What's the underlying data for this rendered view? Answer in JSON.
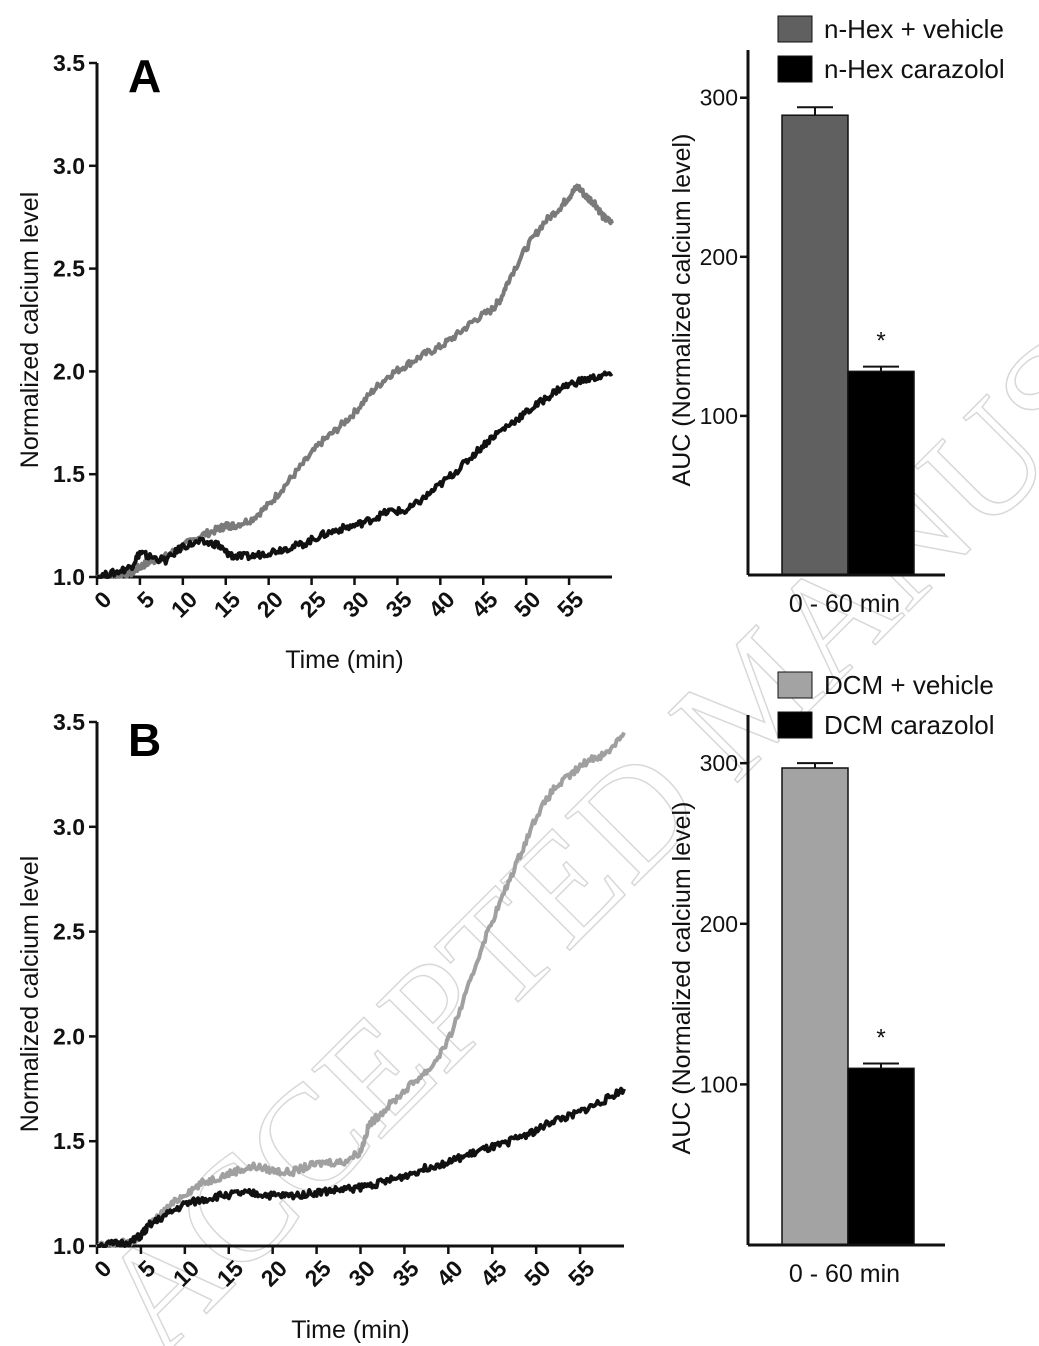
{
  "chart_data": [
    {
      "type": "line",
      "panel": "A",
      "xlabel": "Time (min)",
      "ylabel": "Normalized calcium level",
      "xlim": [
        0,
        60
      ],
      "ylim": [
        1.0,
        3.5
      ],
      "xticks": [
        "0",
        "5",
        "10",
        "15",
        "20",
        "25",
        "30",
        "35",
        "40",
        "45",
        "50",
        "55"
      ],
      "yticks": [
        "1.0",
        "1.5",
        "2.0",
        "2.5",
        "3.0",
        "3.5"
      ],
      "series": [
        {
          "color": "#7a7a7a",
          "x": [
            0,
            2,
            4,
            5,
            6,
            8,
            10,
            12,
            14,
            15,
            16,
            18,
            20,
            22,
            24,
            26,
            28,
            30,
            32,
            34,
            36,
            38,
            40,
            42,
            44,
            46,
            47,
            48,
            50,
            52,
            54,
            55,
            56,
            57,
            58,
            59,
            60
          ],
          "y": [
            1.0,
            1.01,
            1.02,
            1.05,
            1.07,
            1.1,
            1.15,
            1.2,
            1.23,
            1.25,
            1.25,
            1.28,
            1.35,
            1.45,
            1.55,
            1.65,
            1.72,
            1.8,
            1.9,
            1.98,
            2.03,
            2.08,
            2.12,
            2.18,
            2.25,
            2.3,
            2.35,
            2.45,
            2.6,
            2.72,
            2.8,
            2.85,
            2.9,
            2.85,
            2.82,
            2.75,
            2.72
          ]
        },
        {
          "color": "#111111",
          "x": [
            0,
            2,
            4,
            5,
            6,
            8,
            10,
            12,
            14,
            15,
            16,
            18,
            20,
            22,
            24,
            26,
            28,
            30,
            32,
            34,
            36,
            38,
            40,
            42,
            44,
            46,
            48,
            50,
            52,
            54,
            56,
            58,
            60
          ],
          "y": [
            1.0,
            1.02,
            1.05,
            1.12,
            1.1,
            1.08,
            1.15,
            1.17,
            1.16,
            1.12,
            1.1,
            1.1,
            1.12,
            1.14,
            1.16,
            1.2,
            1.23,
            1.25,
            1.28,
            1.32,
            1.32,
            1.38,
            1.45,
            1.52,
            1.6,
            1.68,
            1.74,
            1.8,
            1.86,
            1.92,
            1.95,
            1.97,
            1.99
          ]
        }
      ]
    },
    {
      "type": "bar",
      "panel": "A",
      "categories": [
        "0 - 60 min"
      ],
      "ylabel": "AUC  (Normalized calcium level)",
      "ylim": [
        0,
        330
      ],
      "yticks": [
        "100",
        "200",
        "300"
      ],
      "series": [
        {
          "name": "n-Hex + vehicle",
          "color": "#606060",
          "values": [
            289
          ],
          "error": [
            5
          ]
        },
        {
          "name": "n-Hex carazolol",
          "color": "#000000",
          "values": [
            128
          ],
          "error": [
            3
          ],
          "annotation": "*"
        }
      ],
      "legend": "top-right"
    },
    {
      "type": "line",
      "panel": "B",
      "xlabel": "Time (min)",
      "ylabel": "Normalized calcium level",
      "xlim": [
        0,
        60
      ],
      "ylim": [
        1.0,
        3.5
      ],
      "xticks": [
        "0",
        "5",
        "10",
        "15",
        "20",
        "25",
        "30",
        "35",
        "40",
        "45",
        "50",
        "55"
      ],
      "yticks": [
        "1.0",
        "1.5",
        "2.0",
        "2.5",
        "3.0",
        "3.5"
      ],
      "series": [
        {
          "color": "#a0a0a0",
          "x": [
            0,
            2,
            4,
            5,
            6,
            8,
            10,
            12,
            14,
            16,
            18,
            20,
            22,
            24,
            26,
            28,
            30,
            31,
            32,
            34,
            36,
            38,
            40,
            42,
            44,
            46,
            48,
            50,
            52,
            54,
            56,
            58,
            60
          ],
          "y": [
            1.0,
            1.01,
            1.02,
            1.05,
            1.1,
            1.18,
            1.25,
            1.3,
            1.33,
            1.36,
            1.38,
            1.36,
            1.35,
            1.38,
            1.4,
            1.4,
            1.45,
            1.58,
            1.62,
            1.7,
            1.78,
            1.85,
            1.98,
            2.2,
            2.45,
            2.65,
            2.85,
            3.05,
            3.18,
            3.25,
            3.32,
            3.35,
            3.45
          ]
        },
        {
          "color": "#111111",
          "x": [
            0,
            2,
            4,
            5,
            6,
            8,
            10,
            12,
            14,
            16,
            18,
            20,
            22,
            24,
            26,
            28,
            30,
            32,
            34,
            36,
            38,
            40,
            42,
            44,
            46,
            48,
            50,
            52,
            54,
            56,
            58,
            60
          ],
          "y": [
            1.0,
            1.01,
            1.02,
            1.05,
            1.1,
            1.15,
            1.2,
            1.22,
            1.24,
            1.25,
            1.25,
            1.24,
            1.24,
            1.25,
            1.26,
            1.27,
            1.28,
            1.3,
            1.32,
            1.35,
            1.38,
            1.4,
            1.43,
            1.46,
            1.48,
            1.52,
            1.55,
            1.6,
            1.62,
            1.66,
            1.7,
            1.75
          ]
        }
      ]
    },
    {
      "type": "bar",
      "panel": "B",
      "categories": [
        "0 - 60 min"
      ],
      "ylabel": "AUC  (Normalized calcium level)",
      "ylim": [
        0,
        330
      ],
      "yticks": [
        "100",
        "200",
        "300"
      ],
      "series": [
        {
          "name": "DCM + vehicle",
          "color": "#a3a3a3",
          "values": [
            297
          ],
          "error": [
            3
          ]
        },
        {
          "name": "DCM carazolol",
          "color": "#000000",
          "values": [
            110
          ],
          "error": [
            3
          ],
          "annotation": "*"
        }
      ],
      "legend": "top-right"
    }
  ],
  "watermark": "ACCEPTED MANUSCRIPT"
}
